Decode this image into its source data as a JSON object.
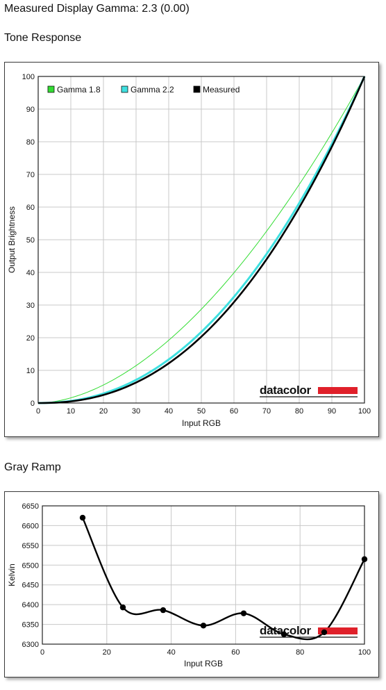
{
  "page": {
    "title": "Measured Display Gamma: 2.3 (0.00)",
    "section_tone": "Tone Response",
    "section_gray": "Gray Ramp",
    "logo_text": "datacolor",
    "colors": {
      "gamma18": "#33dd33",
      "gamma22": "#3fe0e0",
      "measured": "#000000",
      "grid": "#c8c8c8",
      "logo_red": "#e0202a"
    }
  },
  "chart_data": [
    {
      "type": "line",
      "xlabel": "Input RGB",
      "ylabel": "Output Brightness",
      "xlim": [
        0,
        100
      ],
      "ylim": [
        0,
        100
      ],
      "xticks": [
        0,
        10,
        20,
        30,
        40,
        50,
        60,
        70,
        80,
        90,
        100
      ],
      "yticks": [
        0,
        10,
        20,
        30,
        40,
        50,
        60,
        70,
        80,
        90,
        100
      ],
      "grid": true,
      "legend_position": "top-left",
      "series": [
        {
          "name": "Gamma 1.8",
          "gamma": 1.8,
          "color": "#33dd33"
        },
        {
          "name": "Gamma 2.2",
          "gamma": 2.2,
          "color": "#3fe0e0"
        },
        {
          "name": "Measured",
          "gamma": 2.3,
          "color": "#000000"
        }
      ]
    },
    {
      "type": "line",
      "xlabel": "Input RGB",
      "ylabel": "Kelvin",
      "xlim": [
        0,
        100
      ],
      "ylim": [
        6300,
        6650
      ],
      "xticks": [
        0,
        20,
        40,
        60,
        80,
        100
      ],
      "yticks": [
        6300,
        6350,
        6400,
        6450,
        6500,
        6550,
        6600,
        6650
      ],
      "grid": true,
      "series": [
        {
          "x": [
            12.5,
            25,
            37.5,
            50,
            62.5,
            75,
            87.5,
            100
          ],
          "y": [
            6620,
            6393,
            6386,
            6347,
            6378,
            6325,
            6330,
            6515
          ]
        }
      ]
    }
  ]
}
